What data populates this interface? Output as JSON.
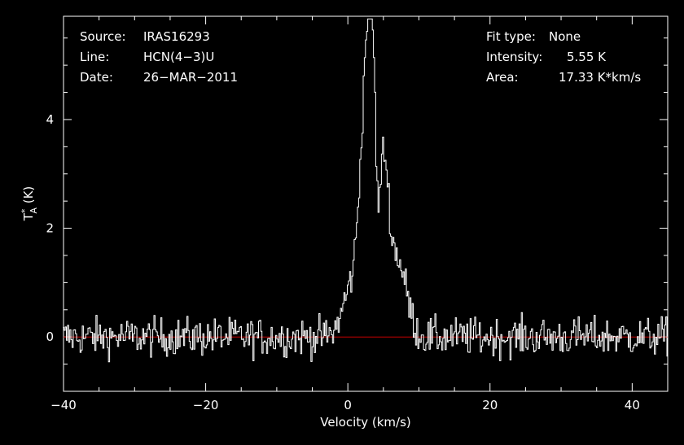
{
  "chart_data": {
    "type": "line",
    "xlabel": "Velocity (km/s)",
    "ylabel": "T*A (K)",
    "xlim": [
      -40,
      45
    ],
    "ylim": [
      -1,
      5.9
    ],
    "x_ticks": [
      -40,
      -20,
      0,
      20,
      40
    ],
    "y_ticks": [
      0,
      2,
      4
    ],
    "x_tick_labels": [
      "−40",
      "−20",
      "0",
      "20",
      "40"
    ],
    "y_tick_labels": [
      "0",
      "2",
      "4"
    ],
    "baseline_y": 0,
    "baseline_color": "#cc0000",
    "spectrum_color": "#ffffff",
    "background_color": "#000000",
    "grid": false,
    "noise_rms": 0.25,
    "features": [
      {
        "center": 3.4,
        "peak": 5.55,
        "width": 0.9
      },
      {
        "center": 2.2,
        "peak": 1.9,
        "width": 0.8
      },
      {
        "center": 5.2,
        "peak": 2.0,
        "width": 0.6
      },
      {
        "center": 6.5,
        "peak": 1.3,
        "width": 1.1
      },
      {
        "center": 0.5,
        "peak": 0.9,
        "width": 1.2
      },
      {
        "center": 8.0,
        "peak": 0.5,
        "width": 1.0
      }
    ],
    "dip": {
      "center": 4.2,
      "depth": 1.9,
      "width": 0.35
    }
  },
  "info_left": [
    {
      "label": "Source:",
      "value": "IRAS16293"
    },
    {
      "label": "Line:",
      "value": "HCN(4−3)U"
    },
    {
      "label": "Date:",
      "value": "26−MAR−2011"
    }
  ],
  "info_right": [
    {
      "label": "Fit type:",
      "value": "None"
    },
    {
      "label": "Intensity:",
      "value": "5.55 K"
    },
    {
      "label": "Area:",
      "value": "17.33 K*km/s"
    }
  ]
}
